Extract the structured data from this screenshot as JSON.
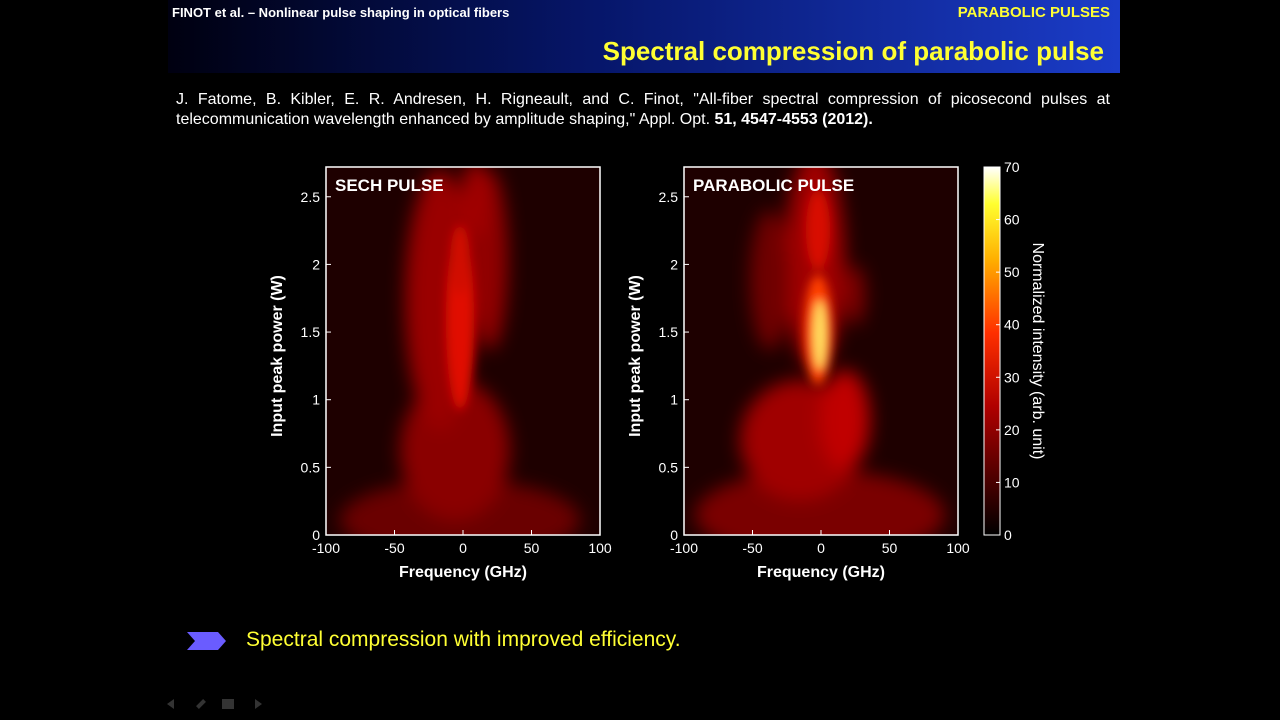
{
  "header": {
    "left": "FINOT et al. – Nonlinear pulse shaping in optical fibers",
    "right": "PARABOLIC PULSES",
    "title": "Spectral compression of parabolic pulse"
  },
  "citation": {
    "text": "J. Fatome, B. Kibler, E. R. Andresen, H. Rigneault, and C. Finot, \"All-fiber spectral compression of picosecond pulses at telecommunication wavelength enhanced by amplitude shaping,\" Appl. Opt.",
    "bold": "51, 4547-4553 (2012)."
  },
  "chart_data": [
    {
      "type": "heatmap",
      "title": "SECH PULSE",
      "xlabel": "Frequency (GHz)",
      "ylabel": "Input peak power (W)",
      "xlim": [
        -100,
        100
      ],
      "xticks": [
        -100,
        -50,
        0,
        50,
        100
      ],
      "ylim": [
        0,
        2.72
      ],
      "yticks": [
        0,
        0.5,
        1,
        1.5,
        2,
        2.5
      ]
    },
    {
      "type": "heatmap",
      "title": "PARABOLIC  PULSE",
      "xlabel": "Frequency (GHz)",
      "ylabel": "Input peak power (W)",
      "xlim": [
        -100,
        100
      ],
      "xticks": [
        -100,
        -50,
        0,
        50,
        100
      ],
      "ylim": [
        0,
        2.72
      ],
      "yticks": [
        0,
        0.5,
        1,
        1.5,
        2,
        2.5
      ],
      "clim": [
        0,
        70
      ],
      "cticks": [
        0,
        10,
        20,
        30,
        40,
        50,
        60,
        70
      ],
      "clabel": "Normalized intensity (arb. unit)"
    }
  ],
  "bullet": "Spectral compression with improved efficiency."
}
